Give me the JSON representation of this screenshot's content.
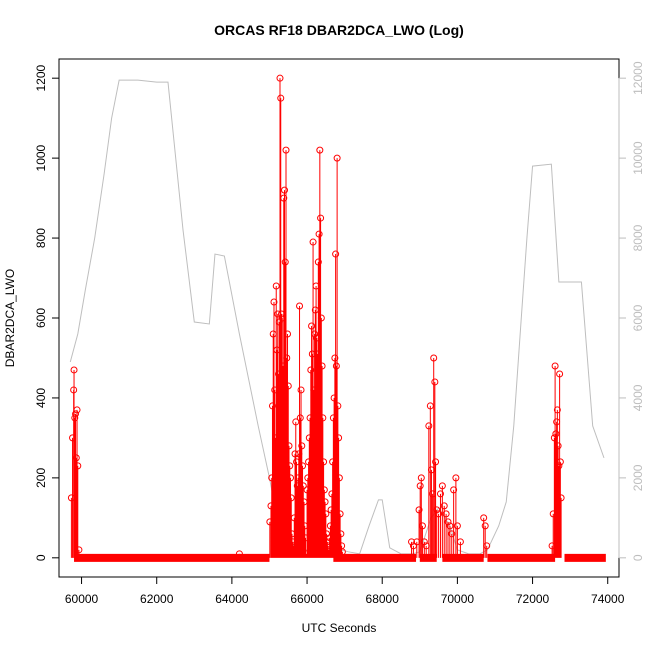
{
  "chart_data": {
    "type": "line",
    "title": "ORCAS RF18 DBAR2DCA_LWO (Log)",
    "xlabel": "UTC Seconds",
    "ylabel": "DBAR2DCA_LWO",
    "xlim": [
      59400,
      74300
    ],
    "ylim": [
      -48,
      1248
    ],
    "y2lim": [
      -480,
      12480
    ],
    "xticks": [
      60000,
      62000,
      64000,
      66000,
      68000,
      70000,
      72000,
      74000
    ],
    "yticks": [
      0,
      200,
      400,
      600,
      800,
      1000,
      1200
    ],
    "y2ticks": [
      0,
      2000,
      4000,
      6000,
      8000,
      10000,
      12000
    ],
    "grid": false,
    "legend": "none",
    "colors": {
      "primary": "#ff0000",
      "altitude": "#bebebe"
    },
    "series": [
      {
        "type": "line",
        "axis": "right",
        "color": "#bebebe",
        "x": [
          59700,
          59900,
          60100,
          60350,
          60600,
          60800,
          61000,
          61500,
          62000,
          62300,
          62700,
          63000,
          63400,
          63550,
          63800,
          64200,
          64700,
          65000,
          65200,
          65500,
          65800,
          66100,
          66400,
          66700,
          66900,
          67100,
          67400,
          67650,
          67900,
          68000,
          68200,
          68500,
          68800,
          69000,
          69300,
          69500,
          69800,
          70000,
          70300,
          70600,
          70800,
          70900,
          71100,
          71300,
          71500,
          71700,
          71850,
          72000,
          72500,
          72700,
          73000,
          73300,
          73600,
          73900
        ],
        "y": [
          4900,
          5600,
          6700,
          8000,
          9600,
          11000,
          11950,
          11950,
          11900,
          11900,
          8200,
          5900,
          5850,
          7600,
          7550,
          5600,
          3300,
          2000,
          1000,
          400,
          200,
          200,
          150,
          200,
          200,
          150,
          100,
          800,
          1450,
          1450,
          250,
          100,
          100,
          150,
          1000,
          1250,
          800,
          200,
          100,
          100,
          200,
          400,
          800,
          1400,
          3300,
          6000,
          8000,
          9800,
          9850,
          6900,
          6900,
          6900,
          3300,
          2500
        ]
      },
      {
        "type": "spikes",
        "axis": "left",
        "color": "#ff0000",
        "name": "",
        "points": [
          [
            59730,
            150
          ],
          [
            59760,
            300
          ],
          [
            59790,
            420
          ],
          [
            59800,
            470
          ],
          [
            59820,
            350
          ],
          [
            59840,
            360
          ],
          [
            59860,
            250
          ],
          [
            59880,
            370
          ],
          [
            59900,
            230
          ],
          [
            59930,
            20
          ],
          [
            64200,
            10
          ],
          [
            65010,
            90
          ],
          [
            65040,
            130
          ],
          [
            65060,
            200
          ],
          [
            65080,
            380
          ],
          [
            65100,
            560
          ],
          [
            65120,
            640
          ],
          [
            65140,
            420
          ],
          [
            65160,
            300
          ],
          [
            65180,
            680
          ],
          [
            65200,
            520
          ],
          [
            65220,
            610
          ],
          [
            65240,
            460
          ],
          [
            65260,
            590
          ],
          [
            65280,
            1200
          ],
          [
            65300,
            1150
          ],
          [
            65320,
            610
          ],
          [
            65340,
            600
          ],
          [
            65360,
            480
          ],
          [
            65380,
            900
          ],
          [
            65400,
            920
          ],
          [
            65420,
            740
          ],
          [
            65440,
            1020
          ],
          [
            65460,
            500
          ],
          [
            65480,
            560
          ],
          [
            65500,
            430
          ],
          [
            65520,
            280
          ],
          [
            65540,
            230
          ],
          [
            65560,
            200
          ],
          [
            65580,
            150
          ],
          [
            65600,
            60
          ],
          [
            65620,
            40
          ],
          [
            65640,
            30
          ],
          [
            65660,
            100
          ],
          [
            65680,
            260
          ],
          [
            65700,
            340
          ],
          [
            65720,
            240
          ],
          [
            65740,
            180
          ],
          [
            65760,
            200
          ],
          [
            65780,
            260
          ],
          [
            65800,
            630
          ],
          [
            65820,
            350
          ],
          [
            65840,
            420
          ],
          [
            65860,
            280
          ],
          [
            65880,
            230
          ],
          [
            65900,
            180
          ],
          [
            65920,
            140
          ],
          [
            65940,
            80
          ],
          [
            65960,
            50
          ],
          [
            65980,
            10
          ],
          [
            66000,
            170
          ],
          [
            66020,
            200
          ],
          [
            66040,
            240
          ],
          [
            66060,
            300
          ],
          [
            66080,
            350
          ],
          [
            66100,
            470
          ],
          [
            66120,
            580
          ],
          [
            66140,
            510
          ],
          [
            66160,
            790
          ],
          [
            66180,
            420
          ],
          [
            66200,
            560
          ],
          [
            66220,
            620
          ],
          [
            66240,
            680
          ],
          [
            66260,
            550
          ],
          [
            66280,
            510
          ],
          [
            66300,
            740
          ],
          [
            66320,
            810
          ],
          [
            66340,
            1020
          ],
          [
            66360,
            850
          ],
          [
            66380,
            600
          ],
          [
            66400,
            480
          ],
          [
            66420,
            350
          ],
          [
            66440,
            240
          ],
          [
            66460,
            170
          ],
          [
            66480,
            140
          ],
          [
            66500,
            110
          ],
          [
            66520,
            60
          ],
          [
            66540,
            40
          ],
          [
            66560,
            30
          ],
          [
            66580,
            20
          ],
          [
            66600,
            50
          ],
          [
            66620,
            80
          ],
          [
            66640,
            120
          ],
          [
            66660,
            160
          ],
          [
            66680,
            240
          ],
          [
            66700,
            350
          ],
          [
            66720,
            400
          ],
          [
            66740,
            500
          ],
          [
            66760,
            760
          ],
          [
            66780,
            480
          ],
          [
            66800,
            1000
          ],
          [
            66820,
            380
          ],
          [
            66840,
            300
          ],
          [
            66860,
            200
          ],
          [
            66880,
            110
          ],
          [
            66900,
            60
          ],
          [
            66920,
            30
          ],
          [
            66940,
            15
          ],
          [
            68780,
            40
          ],
          [
            68830,
            30
          ],
          [
            68920,
            40
          ],
          [
            68980,
            120
          ],
          [
            69010,
            180
          ],
          [
            69040,
            200
          ],
          [
            69070,
            80
          ],
          [
            69120,
            40
          ],
          [
            69170,
            30
          ],
          [
            69240,
            330
          ],
          [
            69280,
            380
          ],
          [
            69310,
            220
          ],
          [
            69340,
            160
          ],
          [
            69370,
            500
          ],
          [
            69400,
            440
          ],
          [
            69420,
            240
          ],
          [
            69450,
            120
          ],
          [
            69500,
            110
          ],
          [
            69550,
            160
          ],
          [
            69600,
            180
          ],
          [
            69650,
            130
          ],
          [
            69700,
            110
          ],
          [
            69750,
            90
          ],
          [
            69800,
            80
          ],
          [
            69850,
            60
          ],
          [
            69900,
            170
          ],
          [
            69960,
            200
          ],
          [
            70000,
            80
          ],
          [
            70080,
            40
          ],
          [
            70700,
            100
          ],
          [
            70740,
            80
          ],
          [
            70780,
            30
          ],
          [
            72520,
            30
          ],
          [
            72550,
            110
          ],
          [
            72580,
            300
          ],
          [
            72600,
            480
          ],
          [
            72620,
            310
          ],
          [
            72640,
            340
          ],
          [
            72660,
            370
          ],
          [
            72680,
            280
          ],
          [
            72700,
            230
          ],
          [
            72720,
            460
          ],
          [
            72740,
            240
          ],
          [
            72760,
            150
          ]
        ]
      }
    ]
  }
}
